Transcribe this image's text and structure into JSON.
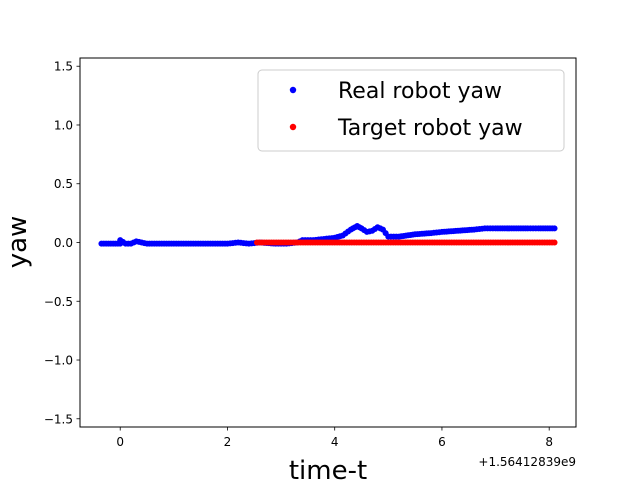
{
  "chart_data": {
    "type": "scatter",
    "title": "",
    "xlabel": "time-t",
    "ylabel": "yaw",
    "x_offset_label": "+1.56412839e9",
    "xlim": [
      -0.75,
      8.5
    ],
    "ylim": [
      -1.57,
      1.57
    ],
    "xticks": [
      0,
      2,
      4,
      6,
      8
    ],
    "xtick_labels": [
      "0",
      "2",
      "4",
      "6",
      "8"
    ],
    "yticks": [
      -1.5,
      -1.0,
      -0.5,
      0.0,
      0.5,
      1.0,
      1.5
    ],
    "ytick_labels": [
      "−1.5",
      "−1.0",
      "−0.5",
      "0.0",
      "0.5",
      "1.0",
      "1.5"
    ],
    "grid": false,
    "legend_position": "top-right",
    "series": [
      {
        "name": "Real robot yaw",
        "color": "#0000ff",
        "x": [
          -0.35,
          0.0,
          0.0,
          0.1,
          0.2,
          0.3,
          0.5,
          1.0,
          1.5,
          2.0,
          2.2,
          2.4,
          2.6,
          2.9,
          3.1,
          3.3,
          3.4,
          3.6,
          3.8,
          4.0,
          4.15,
          4.3,
          4.42,
          4.5,
          4.6,
          4.7,
          4.8,
          4.9,
          5.0,
          5.2,
          5.5,
          5.8,
          6.0,
          6.3,
          6.6,
          6.8,
          7.0,
          7.3,
          7.6,
          7.8,
          8.1
        ],
        "y": [
          -0.01,
          -0.01,
          0.02,
          -0.01,
          -0.01,
          0.01,
          -0.01,
          -0.01,
          -0.01,
          -0.01,
          0.0,
          -0.01,
          0.0,
          -0.01,
          -0.01,
          0.0,
          0.02,
          0.02,
          0.03,
          0.04,
          0.06,
          0.11,
          0.14,
          0.12,
          0.09,
          0.1,
          0.13,
          0.11,
          0.05,
          0.05,
          0.07,
          0.08,
          0.09,
          0.1,
          0.11,
          0.12,
          0.12,
          0.12,
          0.12,
          0.12,
          0.12
        ]
      },
      {
        "name": "Target robot yaw",
        "color": "#ff0000",
        "x": [
          2.55,
          3.0,
          3.5,
          4.0,
          4.5,
          5.0,
          5.5,
          6.0,
          6.5,
          7.0,
          7.5,
          8.1
        ],
        "y": [
          0.0,
          0.0,
          0.0,
          0.0,
          0.0,
          0.0,
          0.0,
          0.0,
          0.0,
          0.0,
          0.0,
          0.0
        ]
      }
    ]
  }
}
